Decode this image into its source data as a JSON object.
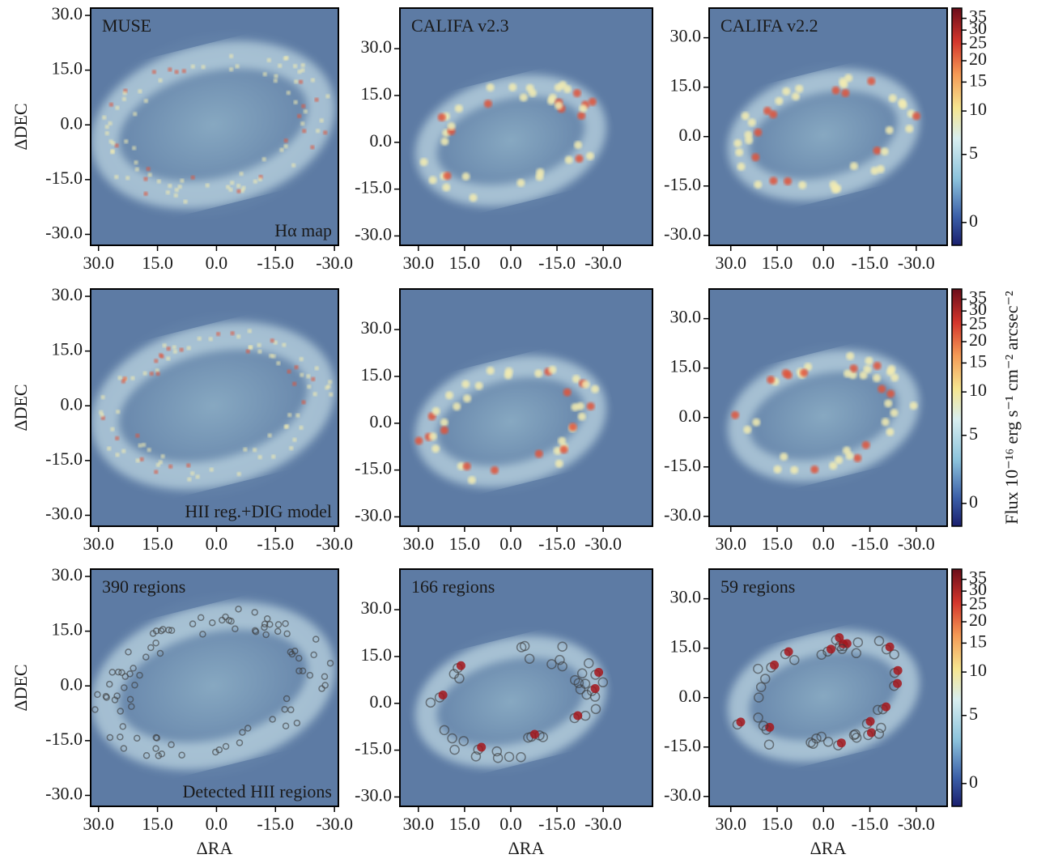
{
  "chart_data": [
    {
      "type": "image",
      "title": "MUSE",
      "title_color": "#1a1a1a",
      "annotation": "Hα map",
      "ylabel": "ΔDEC",
      "xlim": [
        32,
        -31
      ],
      "ylim": [
        -33,
        32
      ],
      "xticks": [
        {
          "value": 30,
          "label": "30.0"
        },
        {
          "value": 15,
          "label": "15.0"
        },
        {
          "value": 0,
          "label": "0.0"
        },
        {
          "value": -15,
          "label": "-15.0"
        },
        {
          "value": -30,
          "label": "-30.0"
        }
      ],
      "yticks": [
        {
          "value": 30,
          "label": "30.0"
        },
        {
          "value": 15,
          "label": "15.0"
        },
        {
          "value": 0,
          "label": "0.0"
        },
        {
          "value": -15,
          "label": "-15.0"
        },
        {
          "value": -30,
          "label": "-30.0"
        }
      ]
    },
    {
      "type": "image",
      "title": "CALIFA v2.3",
      "title_color": "#1a1a1a",
      "xlim": [
        36,
        -46
      ],
      "ylim": [
        -33,
        43
      ],
      "xticks": [
        {
          "value": 30,
          "label": "30.0"
        },
        {
          "value": 15,
          "label": "15.0"
        },
        {
          "value": 0,
          "label": "0.0"
        },
        {
          "value": -15,
          "label": "-15.0"
        },
        {
          "value": -30,
          "label": "-30.0"
        }
      ],
      "yticks": [
        {
          "value": 30,
          "label": "30.0"
        },
        {
          "value": 15,
          "label": "15.0"
        },
        {
          "value": 0,
          "label": "0.0"
        },
        {
          "value": -15,
          "label": "-15.0"
        },
        {
          "value": -30,
          "label": "-30.0"
        }
      ]
    },
    {
      "type": "image",
      "title": "CALIFA v2.2",
      "title_color": "#1a1a1a",
      "xlim": [
        37,
        -40
      ],
      "ylim": [
        -33,
        39
      ],
      "xticks": [
        {
          "value": 30,
          "label": "30.0"
        },
        {
          "value": 15,
          "label": "15.0"
        },
        {
          "value": 0,
          "label": "0.0"
        },
        {
          "value": -15,
          "label": "-15.0"
        },
        {
          "value": -30,
          "label": "-30.0"
        }
      ],
      "yticks": [
        {
          "value": 30,
          "label": "30.0"
        },
        {
          "value": 15,
          "label": "15.0"
        },
        {
          "value": 0,
          "label": "0.0"
        },
        {
          "value": -15,
          "label": "-15.0"
        },
        {
          "value": -30,
          "label": "-30.0"
        }
      ]
    },
    {
      "type": "image",
      "annotation": "HII reg.+DIG model",
      "ylabel": "ΔDEC",
      "xlim": [
        32,
        -31
      ],
      "ylim": [
        -33,
        32
      ],
      "xticks": [
        {
          "value": 30,
          "label": "30.0"
        },
        {
          "value": 15,
          "label": "15.0"
        },
        {
          "value": 0,
          "label": "0.0"
        },
        {
          "value": -15,
          "label": "-15.0"
        },
        {
          "value": -30,
          "label": "-30.0"
        }
      ],
      "yticks": [
        {
          "value": 30,
          "label": "30.0"
        },
        {
          "value": 15,
          "label": "15.0"
        },
        {
          "value": 0,
          "label": "0.0"
        },
        {
          "value": -15,
          "label": "-15.0"
        },
        {
          "value": -30,
          "label": "-30.0"
        }
      ]
    },
    {
      "type": "image",
      "xlim": [
        36,
        -46
      ],
      "ylim": [
        -33,
        43
      ],
      "xticks": [
        {
          "value": 30,
          "label": "30.0"
        },
        {
          "value": 15,
          "label": "15.0"
        },
        {
          "value": 0,
          "label": "0.0"
        },
        {
          "value": -15,
          "label": "-15.0"
        },
        {
          "value": -30,
          "label": "-30.0"
        }
      ],
      "yticks": [
        {
          "value": 30,
          "label": "30.0"
        },
        {
          "value": 15,
          "label": "15.0"
        },
        {
          "value": 0,
          "label": "0.0"
        },
        {
          "value": -15,
          "label": "-15.0"
        },
        {
          "value": -30,
          "label": "-30.0"
        }
      ]
    },
    {
      "type": "image",
      "xlim": [
        37,
        -40
      ],
      "ylim": [
        -33,
        39
      ],
      "xticks": [
        {
          "value": 30,
          "label": "30.0"
        },
        {
          "value": 15,
          "label": "15.0"
        },
        {
          "value": 0,
          "label": "0.0"
        },
        {
          "value": -15,
          "label": "-15.0"
        },
        {
          "value": -30,
          "label": "-30.0"
        }
      ],
      "yticks": [
        {
          "value": 30,
          "label": "30.0"
        },
        {
          "value": 15,
          "label": "15.0"
        },
        {
          "value": 0,
          "label": "0.0"
        },
        {
          "value": -15,
          "label": "-15.0"
        },
        {
          "value": -30,
          "label": "-30.0"
        }
      ]
    },
    {
      "type": "image",
      "title": "390 regions",
      "title_color": "#1a1a1a",
      "annotation": "Detected HII regions",
      "ylabel": "ΔDEC",
      "xlabel": "ΔRA",
      "xlim": [
        32,
        -31
      ],
      "ylim": [
        -33,
        32
      ],
      "xticks": [
        {
          "value": 30,
          "label": "30.0"
        },
        {
          "value": 15,
          "label": "15.0"
        },
        {
          "value": 0,
          "label": "0.0"
        },
        {
          "value": -15,
          "label": "-15.0"
        },
        {
          "value": -30,
          "label": "-30.0"
        }
      ],
      "yticks": [
        {
          "value": 30,
          "label": "30.0"
        },
        {
          "value": 15,
          "label": "15.0"
        },
        {
          "value": 0,
          "label": "0.0"
        },
        {
          "value": -15,
          "label": "-15.0"
        },
        {
          "value": -30,
          "label": "-30.0"
        }
      ]
    },
    {
      "type": "image",
      "title": "166 regions",
      "title_color": "#9b1c1c",
      "xlabel": "ΔRA",
      "xlim": [
        36,
        -46
      ],
      "ylim": [
        -33,
        43
      ],
      "xticks": [
        {
          "value": 30,
          "label": "30.0"
        },
        {
          "value": 15,
          "label": "15.0"
        },
        {
          "value": 0,
          "label": "0.0"
        },
        {
          "value": -15,
          "label": "-15.0"
        },
        {
          "value": -30,
          "label": "-30.0"
        }
      ],
      "yticks": [
        {
          "value": 30,
          "label": "30.0"
        },
        {
          "value": 15,
          "label": "15.0"
        },
        {
          "value": 0,
          "label": "0.0"
        },
        {
          "value": -15,
          "label": "-15.0"
        },
        {
          "value": -30,
          "label": "-30.0"
        }
      ]
    },
    {
      "type": "image",
      "title": "59 regions",
      "title_color": "#9b1c1c",
      "xlabel": "ΔRA",
      "xlim": [
        37,
        -40
      ],
      "ylim": [
        -33,
        39
      ],
      "xticks": [
        {
          "value": 30,
          "label": "30.0"
        },
        {
          "value": 15,
          "label": "15.0"
        },
        {
          "value": 0,
          "label": "0.0"
        },
        {
          "value": -15,
          "label": "-15.0"
        },
        {
          "value": -30,
          "label": "-30.0"
        }
      ],
      "yticks": [
        {
          "value": 30,
          "label": "30.0"
        },
        {
          "value": 15,
          "label": "15.0"
        },
        {
          "value": 0,
          "label": "0.0"
        },
        {
          "value": -15,
          "label": "-15.0"
        },
        {
          "value": -30,
          "label": "-30.0"
        }
      ]
    },
    {
      "type": "colorbar",
      "scale": "asinh",
      "ylim": [
        -1.5,
        40
      ],
      "yticks": [
        0,
        5,
        10,
        15,
        20,
        25,
        30,
        35
      ]
    },
    {
      "type": "colorbar",
      "scale": "asinh",
      "ylim": [
        -1.5,
        40
      ],
      "yticks": [
        0,
        5,
        10,
        15,
        20,
        25,
        30,
        35
      ],
      "label": "Flux 10⁻¹⁶ erg s⁻¹ cm⁻² arcsec⁻²"
    },
    {
      "type": "colorbar",
      "scale": "asinh",
      "ylim": [
        -1.5,
        40
      ],
      "yticks": [
        0,
        5,
        10,
        15,
        20,
        25,
        30,
        35
      ]
    }
  ]
}
